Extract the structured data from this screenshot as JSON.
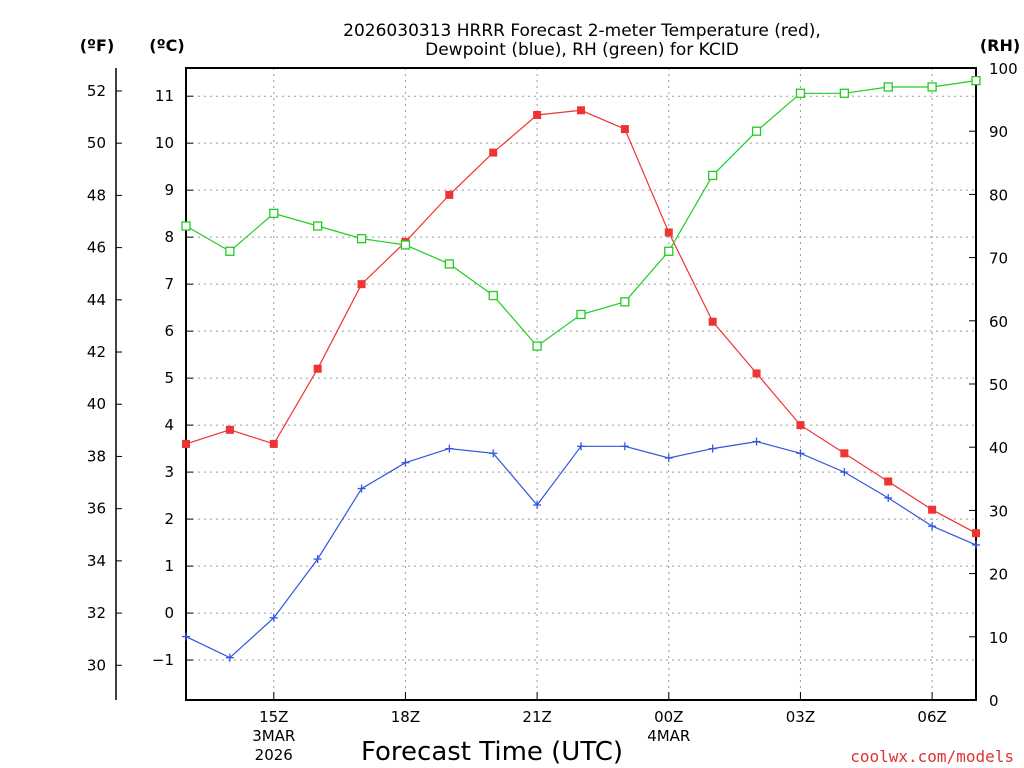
{
  "chart_data": {
    "type": "line",
    "title_line1": "2026030313 HRRR Forecast 2-meter Temperature (red),",
    "title_line2": "Dewpoint (blue), RH (green) for KCID",
    "xlabel": "Forecast Time (UTC)",
    "watermark": "coolwx.com/models",
    "unit_f": "(ºF)",
    "unit_c": "(ºC)",
    "unit_rh": "(RH)",
    "x_hours": [
      13,
      14,
      15,
      16,
      17,
      18,
      19,
      20,
      21,
      22,
      23,
      24,
      25,
      26,
      27,
      28,
      29,
      30,
      31
    ],
    "xlim": [
      13,
      31
    ],
    "celsius_lim": [
      -1.85,
      11.6
    ],
    "rh_lim": [
      0,
      100
    ],
    "fahrenheit_ticks": [
      30,
      32,
      34,
      36,
      38,
      40,
      42,
      44,
      46,
      48,
      50,
      52
    ],
    "celsius_ticks": [
      -1,
      0,
      1,
      2,
      3,
      4,
      5,
      6,
      7,
      8,
      9,
      10,
      11
    ],
    "rh_ticks": [
      0,
      10,
      20,
      30,
      40,
      50,
      60,
      70,
      80,
      90,
      100
    ],
    "x_ticks": [
      {
        "hour": 15,
        "label": "15Z",
        "sub1": "3MAR",
        "sub2": "2026"
      },
      {
        "hour": 18,
        "label": "18Z",
        "sub1": "",
        "sub2": ""
      },
      {
        "hour": 21,
        "label": "21Z",
        "sub1": "",
        "sub2": ""
      },
      {
        "hour": 24,
        "label": "00Z",
        "sub1": "4MAR",
        "sub2": ""
      },
      {
        "hour": 27,
        "label": "03Z",
        "sub1": "",
        "sub2": ""
      },
      {
        "hour": 30,
        "label": "06Z",
        "sub1": "",
        "sub2": ""
      }
    ],
    "series": [
      {
        "name": "Temperature",
        "unit": "C",
        "color": "#ee3333",
        "marker": "filled-square",
        "values": [
          3.6,
          3.9,
          3.6,
          5.2,
          7.0,
          7.9,
          8.9,
          9.8,
          10.6,
          10.7,
          10.3,
          8.1,
          6.2,
          5.1,
          4.0,
          3.4,
          2.8,
          2.2,
          1.7
        ]
      },
      {
        "name": "Dewpoint",
        "unit": "C",
        "color": "#3355dd",
        "marker": "plus",
        "values": [
          -0.5,
          -0.95,
          -0.1,
          1.15,
          2.65,
          3.2,
          3.5,
          3.4,
          2.3,
          3.55,
          3.55,
          3.3,
          3.5,
          3.65,
          3.4,
          3.0,
          2.45,
          1.85,
          1.45
        ]
      },
      {
        "name": "RH",
        "unit": "%",
        "color": "#22cc22",
        "marker": "open-square",
        "values": [
          75,
          71,
          77,
          75,
          73,
          72,
          69,
          64,
          56,
          61,
          63,
          71,
          83,
          90,
          96,
          96,
          97,
          97,
          98
        ]
      }
    ]
  }
}
